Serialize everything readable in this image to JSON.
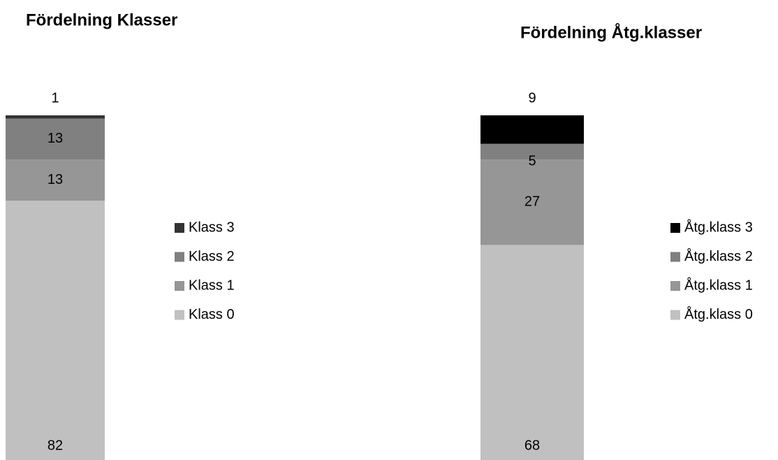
{
  "chart_data": [
    {
      "type": "bar",
      "title": "Fördelning Klasser",
      "series": [
        {
          "name": "Klass 0",
          "color": "#c0c0c0",
          "values": [
            82
          ]
        },
        {
          "name": "Klass 1",
          "color": "#969696",
          "values": [
            13
          ]
        },
        {
          "name": "Klass 2",
          "color": "#808080",
          "values": [
            13
          ]
        },
        {
          "name": "Klass 3",
          "color": "#333333",
          "values": [
            1
          ]
        }
      ]
    },
    {
      "type": "bar",
      "title": "Fördelning Åtg.klasser",
      "series": [
        {
          "name": "Åtg.klass 0",
          "color": "#c0c0c0",
          "values": [
            68
          ]
        },
        {
          "name": "Åtg.klass 1",
          "color": "#969696",
          "values": [
            27
          ]
        },
        {
          "name": "Åtg.klass 2",
          "color": "#808080",
          "values": [
            5
          ]
        },
        {
          "name": "Åtg.klass 3",
          "color": "#000000",
          "values": [
            9
          ]
        }
      ]
    }
  ]
}
